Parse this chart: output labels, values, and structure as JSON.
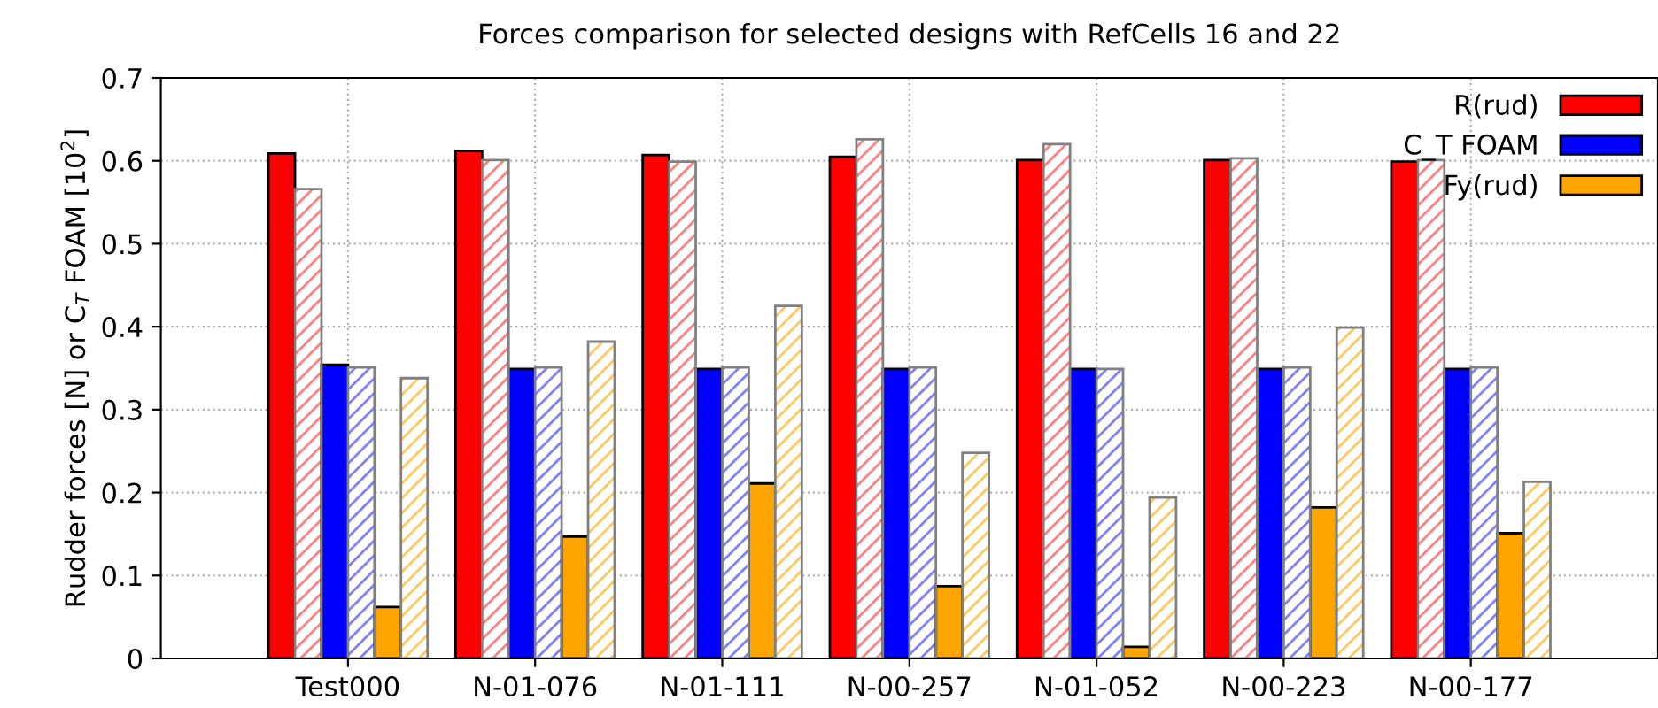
{
  "chart_data": {
    "type": "bar",
    "title": "Forces comparison for selected designs with RefCells 16 and 22",
    "ylabel": "Rudder forces [N] or C$_{T}$ FOAM [10$^{2}$]",
    "categories": [
      "Test000",
      "N-01-076",
      "N-01-111",
      "N-00-257",
      "N-01-052",
      "N-00-223",
      "N-00-177"
    ],
    "series": [
      {
        "name": "R(rud)",
        "color": "#ff0000",
        "values": [
          0.609,
          0.612,
          0.607,
          0.605,
          0.601,
          0.601,
          0.599
        ]
      },
      {
        "color": "#ff8080",
        "values": [
          0.566,
          0.601,
          0.599,
          0.626,
          0.62,
          0.603,
          0.601
        ]
      },
      {
        "name": "C_T FOAM",
        "color": "#0000ff",
        "values": [
          0.354,
          0.349,
          0.349,
          0.349,
          0.349,
          0.349,
          0.349
        ]
      },
      {
        "color": "#8080ff",
        "values": [
          0.351,
          0.351,
          0.351,
          0.351,
          0.349,
          0.351,
          0.351
        ]
      },
      {
        "name": "Fy(rud)",
        "color": "#ffa500",
        "values": [
          0.062,
          0.147,
          0.211,
          0.087,
          0.014,
          0.182,
          0.151
        ]
      },
      {
        "color": "#ffc860",
        "values": [
          0.338,
          0.382,
          0.425,
          0.248,
          0.194,
          0.399,
          0.213
        ]
      }
    ],
    "ylim": [
      0,
      0.7
    ],
    "yticks": [
      0,
      0.1,
      0.2,
      0.3,
      0.4,
      0.5,
      0.6,
      0.7
    ],
    "grid": true,
    "legend": "top right"
  }
}
